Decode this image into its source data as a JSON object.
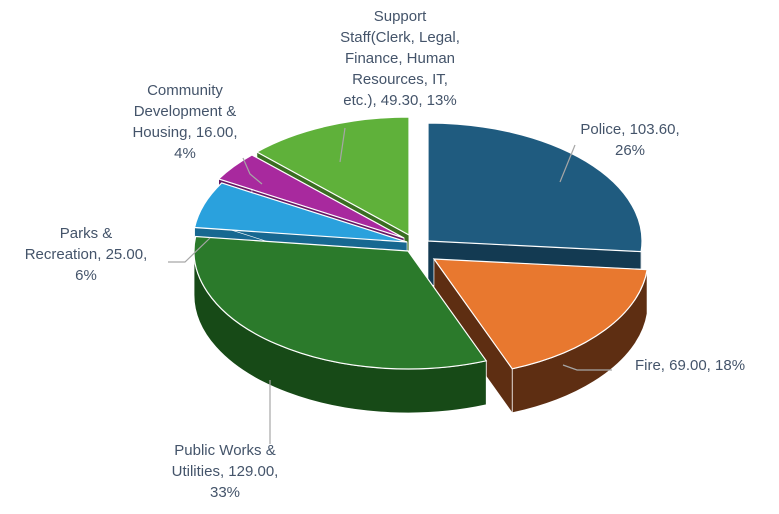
{
  "chart_data": {
    "type": "pie",
    "style": "3d-exploded",
    "title": "",
    "slices": [
      {
        "category": "Police",
        "value": 103.6,
        "percent": 26,
        "color": "#1f5b7f",
        "side_color": "#133a52"
      },
      {
        "category": "Fire",
        "value": 69.0,
        "percent": 18,
        "color": "#e8782f",
        "side_color": "#5e2e12"
      },
      {
        "category": "Public Works & Utilities",
        "value": 129.0,
        "percent": 33,
        "color": "#2b7a2b",
        "side_color": "#174a17"
      },
      {
        "category": "Parks & Recreation",
        "value": 25.0,
        "percent": 6,
        "color": "#2aa1dd",
        "side_color": "#176891"
      },
      {
        "category": "Community Development & Housing",
        "value": 16.0,
        "percent": 4,
        "color": "#a8299e",
        "side_color": "#661863"
      },
      {
        "category": "Support Staff(Clerk, Legal, Finance, Human Resources, IT, etc.)",
        "value": 49.3,
        "percent": 13,
        "color": "#5fb13a",
        "side_color": "#3a6e22"
      }
    ],
    "labels": [
      {
        "lines": [
          "Police, 103.60,",
          "26%"
        ]
      },
      {
        "lines": [
          "Fire, 69.00, 18%"
        ]
      },
      {
        "lines": [
          "Public Works &",
          "Utilities, 129.00,",
          "33%"
        ]
      },
      {
        "lines": [
          "Parks &",
          "Recreation, 25.00,",
          "6%"
        ]
      },
      {
        "lines": [
          "Community",
          "Development &",
          "Housing, 16.00,",
          "4%"
        ]
      },
      {
        "lines": [
          "Support",
          "Staff(Clerk, Legal,",
          "Finance, Human",
          "Resources, IT,",
          "etc.), 49.30, 13%"
        ]
      }
    ],
    "legend": "none"
  }
}
